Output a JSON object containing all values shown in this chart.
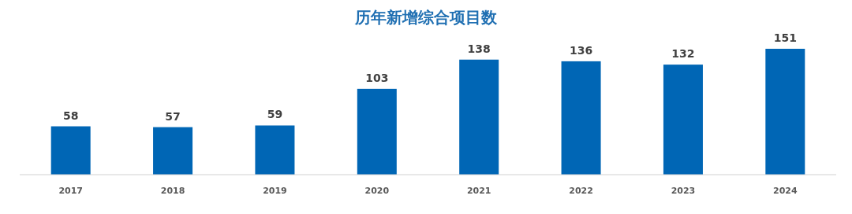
{
  "chart_data": {
    "type": "bar",
    "title": "历年新增综合项目数",
    "categories": [
      "2017",
      "2018",
      "2019",
      "2020",
      "2021",
      "2022",
      "2023",
      "2024"
    ],
    "values": [
      58,
      57,
      59,
      103,
      138,
      136,
      132,
      151
    ],
    "color": "#0066b5",
    "data_labels": true
  }
}
